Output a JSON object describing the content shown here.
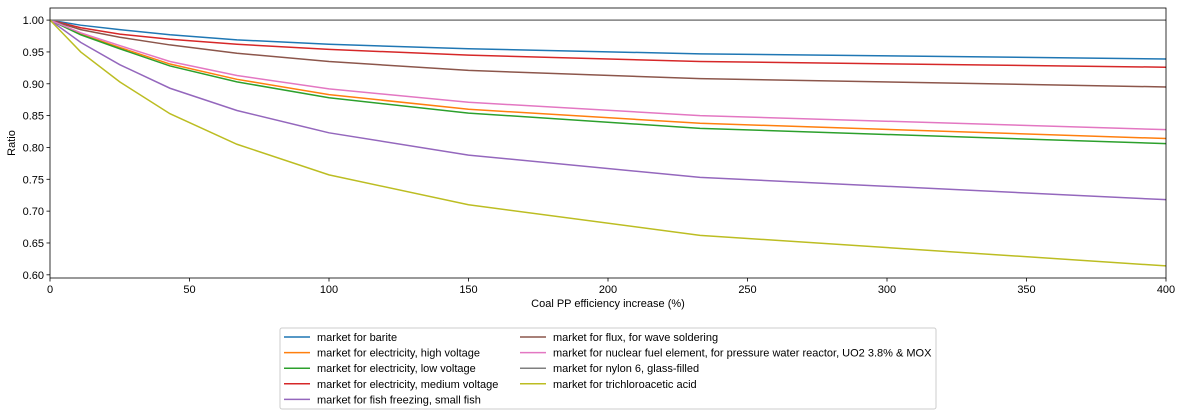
{
  "chart_data": {
    "type": "line",
    "title": "",
    "xlabel": "Coal PP efficiency increase (%)",
    "ylabel": "Ratio",
    "xlim": [
      0,
      400
    ],
    "ylim": [
      0.595,
      1.019
    ],
    "xticks": [
      0,
      50,
      100,
      150,
      200,
      250,
      300,
      350,
      400
    ],
    "xtick_labels": [
      "0",
      "50",
      "100",
      "150",
      "200",
      "250",
      "300",
      "350",
      "400"
    ],
    "yticks": [
      0.6,
      0.65,
      0.7,
      0.75,
      0.8,
      0.85,
      0.9,
      0.95,
      1.0
    ],
    "ytick_labels": [
      "0.60",
      "0.65",
      "0.70",
      "0.75",
      "0.80",
      "0.85",
      "0.90",
      "0.95",
      "1.00"
    ],
    "grid": false,
    "legend_position": "below",
    "x": [
      0,
      11,
      25,
      43,
      67,
      100,
      150,
      233,
      400
    ],
    "series": [
      {
        "name": "market for barite",
        "color": "#1f77b4",
        "values": [
          1.0,
          0.992,
          0.985,
          0.977,
          0.969,
          0.962,
          0.955,
          0.947,
          0.939
        ]
      },
      {
        "name": "market for electricity, high voltage",
        "color": "#ff7f0e",
        "values": [
          1.0,
          0.978,
          0.957,
          0.931,
          0.907,
          0.883,
          0.86,
          0.838,
          0.814
        ]
      },
      {
        "name": "market for electricity, low voltage",
        "color": "#2ca02c",
        "values": [
          1.0,
          0.977,
          0.955,
          0.928,
          0.903,
          0.878,
          0.854,
          0.83,
          0.806
        ]
      },
      {
        "name": "market for electricity, medium voltage",
        "color": "#d62728",
        "values": [
          1.0,
          0.988,
          0.978,
          0.97,
          0.962,
          0.954,
          0.945,
          0.935,
          0.926
        ]
      },
      {
        "name": "market for fish freezing, small fish",
        "color": "#9467bd",
        "values": [
          1.0,
          0.965,
          0.93,
          0.893,
          0.858,
          0.823,
          0.788,
          0.753,
          0.718
        ]
      },
      {
        "name": "market for flux, for wave soldering",
        "color": "#8c564b",
        "values": [
          1.0,
          0.985,
          0.973,
          0.961,
          0.948,
          0.935,
          0.921,
          0.908,
          0.895
        ]
      },
      {
        "name": "market for nuclear fuel element, for pressure water reactor, UO2 3.8% & MOX",
        "color": "#e377c2",
        "values": [
          1.0,
          0.98,
          0.96,
          0.935,
          0.913,
          0.892,
          0.871,
          0.85,
          0.828
        ]
      },
      {
        "name": "market for nylon 6, glass-filled",
        "color": "#7f7f7f",
        "values": [
          1.0,
          1.0,
          1.0,
          1.0,
          1.0,
          1.0,
          1.0,
          1.0,
          1.0
        ]
      },
      {
        "name": "market for trichloroacetic acid",
        "color": "#bcbd22",
        "values": [
          1.0,
          0.95,
          0.903,
          0.853,
          0.805,
          0.757,
          0.71,
          0.662,
          0.614
        ]
      }
    ]
  }
}
